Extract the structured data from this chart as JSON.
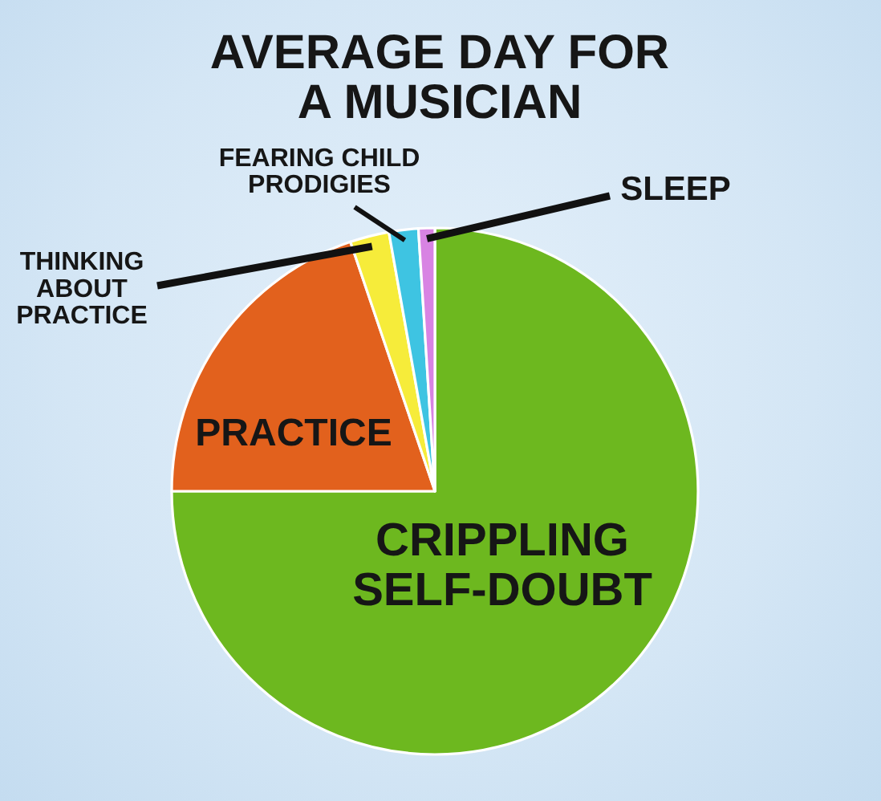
{
  "chart_data": {
    "type": "pie",
    "title": "AVERAGE DAY FOR A MUSICIAN",
    "categories": [
      "CRIPPLING SELF-DOUBT",
      "PRACTICE",
      "THINKING ABOUT PRACTICE",
      "FEARING CHILD PRODIGIES",
      "SLEEP"
    ],
    "values": [
      75,
      19.8,
      2.4,
      1.8,
      1.0
    ],
    "colors": [
      "#6db81f",
      "#e2611d",
      "#f6ec3a",
      "#3ec4e2",
      "#d883e3"
    ]
  }
}
